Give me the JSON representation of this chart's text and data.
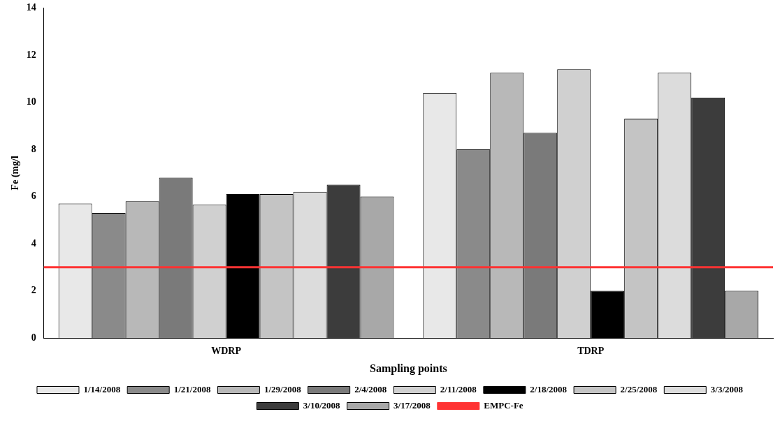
{
  "chart_data": {
    "type": "bar",
    "xlabel": "Sampling points",
    "ylabel": "Fe (mg/l",
    "categories": [
      "WDRP",
      "TDRP"
    ],
    "series": [
      {
        "name": "1/14/2008",
        "color": "#e8e8e8",
        "values": [
          5.7,
          10.4
        ]
      },
      {
        "name": "1/21/2008",
        "color": "#8a8a8a",
        "values": [
          5.3,
          8.0
        ]
      },
      {
        "name": "1/29/2008",
        "color": "#b8b8b8",
        "values": [
          5.8,
          11.25
        ]
      },
      {
        "name": "2/4/2008",
        "color": "#7a7a7a",
        "values": [
          6.8,
          8.7
        ]
      },
      {
        "name": "2/11/2008",
        "color": "#d0d0d0",
        "values": [
          5.65,
          11.4
        ]
      },
      {
        "name": "2/18/2008",
        "color": "#000000",
        "values": [
          6.1,
          2.0
        ]
      },
      {
        "name": "2/25/2008",
        "color": "#c4c4c4",
        "values": [
          6.1,
          9.3
        ]
      },
      {
        "name": "3/3/2008",
        "color": "#dcdcdc",
        "values": [
          6.2,
          11.25
        ]
      },
      {
        "name": "3/10/2008",
        "color": "#3c3c3c",
        "values": [
          6.5,
          10.2
        ]
      },
      {
        "name": "3/17/2008",
        "color": "#a8a8a8",
        "values": [
          6.0,
          2.0
        ]
      }
    ],
    "ref_lines": [
      {
        "axis": "y",
        "value": 3,
        "label": "EMPC-Fe",
        "color": "#ff3333"
      }
    ],
    "ylim": [
      0,
      14
    ],
    "yticks": [
      0,
      2,
      4,
      6,
      8,
      10,
      12,
      14
    ],
    "grid": false,
    "legend": "bottom"
  }
}
